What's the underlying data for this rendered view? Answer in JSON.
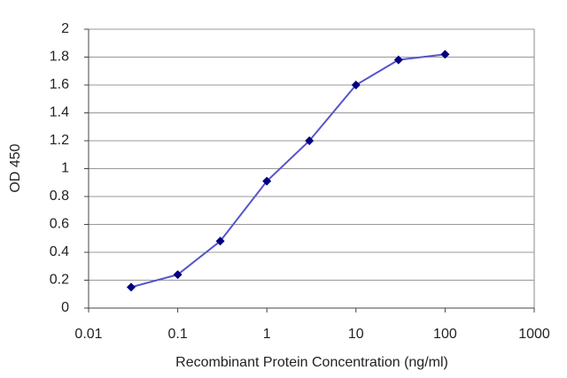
{
  "chart_data": {
    "type": "line",
    "x_label": "Recombinant Protein Concentration (ng/ml)",
    "y_label": "OD 450",
    "x": [
      0.03,
      0.1,
      0.3,
      1,
      3,
      10,
      30,
      100
    ],
    "series": [
      {
        "color": "#5555cc",
        "marker_color": "#000080",
        "values": [
          0.15,
          0.24,
          0.48,
          0.91,
          1.2,
          1.6,
          1.78,
          1.82
        ]
      }
    ],
    "xlim": [
      0.01,
      1000
    ],
    "xticks": [
      0.01,
      0.1,
      1,
      10,
      100,
      1000
    ],
    "x_log": true,
    "ylim": [
      0,
      2
    ],
    "yticks": [
      0,
      0.2,
      0.4,
      0.6,
      0.8,
      1,
      1.2,
      1.4,
      1.6,
      1.8,
      2
    ],
    "grid": true
  }
}
